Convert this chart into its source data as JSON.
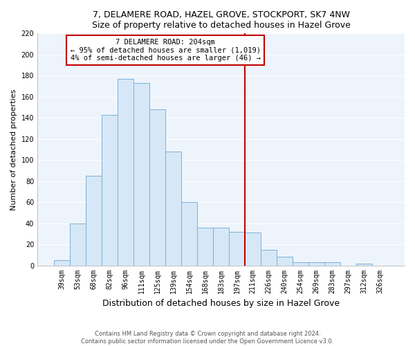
{
  "title1": "7, DELAMERE ROAD, HAZEL GROVE, STOCKPORT, SK7 4NW",
  "title2": "Size of property relative to detached houses in Hazel Grove",
  "xlabel": "Distribution of detached houses by size in Hazel Grove",
  "ylabel": "Number of detached properties",
  "footnote1": "Contains HM Land Registry data © Crown copyright and database right 2024.",
  "footnote2": "Contains public sector information licensed under the Open Government Licence v3.0.",
  "categories": [
    "39sqm",
    "53sqm",
    "68sqm",
    "82sqm",
    "96sqm",
    "111sqm",
    "125sqm",
    "139sqm",
    "154sqm",
    "168sqm",
    "183sqm",
    "197sqm",
    "211sqm",
    "226sqm",
    "240sqm",
    "254sqm",
    "269sqm",
    "283sqm",
    "297sqm",
    "312sqm",
    "326sqm"
  ],
  "values": [
    5,
    40,
    85,
    143,
    177,
    173,
    148,
    108,
    60,
    36,
    36,
    32,
    31,
    15,
    8,
    3,
    3,
    3,
    0,
    2,
    0
  ],
  "bar_color": "#d6e8f7",
  "bar_edge_color": "#7ab0d8",
  "property_label": "7 DELAMERE ROAD: 204sqm",
  "annotation_line1": "← 95% of detached houses are smaller (1,019)",
  "annotation_line2": "4% of semi-detached houses are larger (46) →",
  "vline_color": "#c00000",
  "annotation_box_color": "#c00000",
  "vline_x_index": 11.5,
  "ylim": [
    0,
    220
  ],
  "yticks": [
    0,
    20,
    40,
    60,
    80,
    100,
    120,
    140,
    160,
    180,
    200,
    220
  ],
  "bg_color": "#eef4fb"
}
